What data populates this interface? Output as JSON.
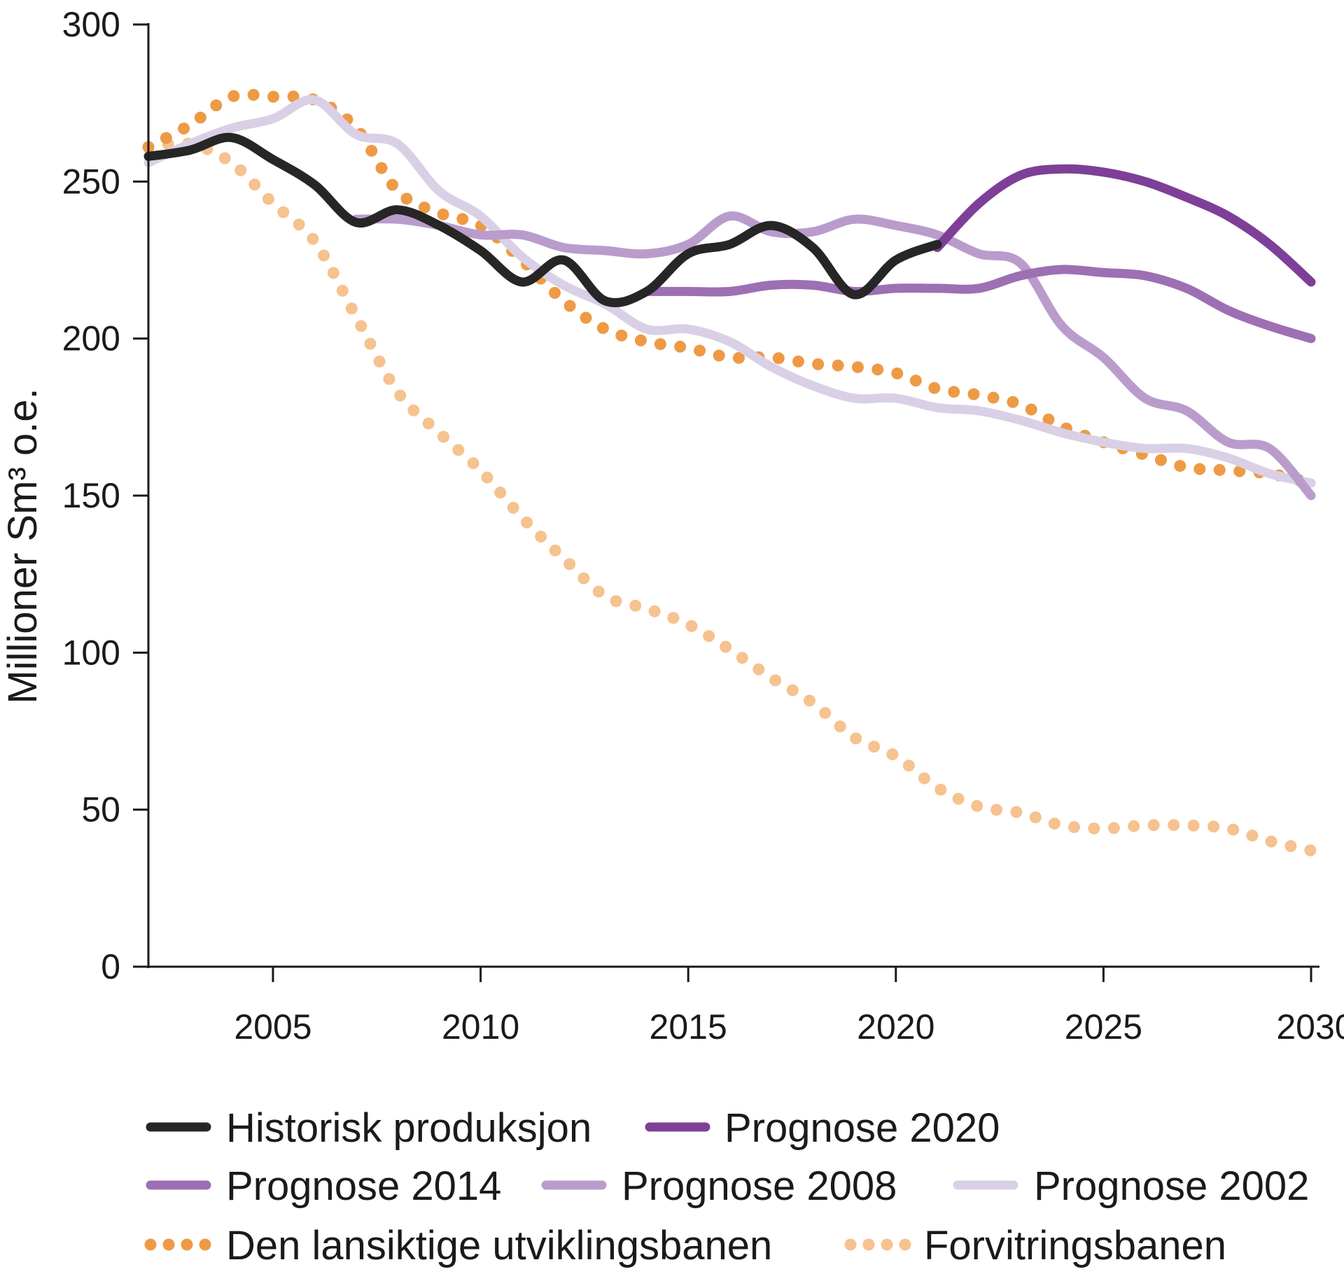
{
  "chart_data": {
    "type": "line",
    "title": "",
    "xlabel": "",
    "ylabel": "Millioner Sm³ o.e.",
    "xlim": [
      2002,
      2030
    ],
    "ylim": [
      0,
      300
    ],
    "xticks": [
      {
        "value": 2005,
        "label": "2005"
      },
      {
        "value": 2010,
        "label": "2010"
      },
      {
        "value": 2015,
        "label": "2015"
      },
      {
        "value": 2020,
        "label": "2020"
      },
      {
        "value": 2025,
        "label": "2025"
      },
      {
        "value": 2030,
        "label": "2030"
      }
    ],
    "yticks": [
      {
        "value": 0,
        "label": "0"
      },
      {
        "value": 50,
        "label": "50"
      },
      {
        "value": 100,
        "label": "100"
      },
      {
        "value": 150,
        "label": "150"
      },
      {
        "value": 200,
        "label": "200"
      },
      {
        "value": 250,
        "label": "250"
      },
      {
        "value": 300,
        "label": "300"
      }
    ],
    "grid": false,
    "legend_position": "bottom",
    "series": [
      {
        "name": "Historisk produksjon",
        "color": "#262626",
        "style": "solid",
        "x": [
          2002,
          2003,
          2004,
          2005,
          2006,
          2007,
          2008,
          2009,
          2010,
          2011,
          2012,
          2013,
          2014,
          2015,
          2016,
          2017,
          2018,
          2019,
          2020,
          2021
        ],
        "values": [
          258,
          260,
          264,
          257,
          249,
          237,
          241,
          236,
          228,
          218,
          225,
          212,
          215,
          227,
          230,
          236,
          229,
          214,
          225,
          230
        ]
      },
      {
        "name": "Prognose 2020",
        "color": "#7e3f98",
        "style": "solid",
        "x": [
          2021,
          2022,
          2023,
          2024,
          2025,
          2026,
          2027,
          2028,
          2029,
          2030
        ],
        "values": [
          229,
          243,
          252,
          254,
          253,
          250,
          245,
          239,
          230,
          218
        ]
      },
      {
        "name": "Prognose 2014",
        "color": "#9d6fb3",
        "style": "solid",
        "x": [
          2014,
          2015,
          2016,
          2017,
          2018,
          2019,
          2020,
          2021,
          2022,
          2023,
          2024,
          2025,
          2026,
          2027,
          2028,
          2029,
          2030
        ],
        "values": [
          215,
          215,
          215,
          217,
          217,
          215,
          216,
          216,
          216,
          220,
          222,
          221,
          220,
          216,
          209,
          204,
          200
        ]
      },
      {
        "name": "Prognose 2008",
        "color": "#b99ccc",
        "style": "solid",
        "x": [
          2007,
          2008,
          2009,
          2010,
          2011,
          2012,
          2013,
          2014,
          2015,
          2016,
          2017,
          2018,
          2019,
          2020,
          2021,
          2022,
          2023,
          2024,
          2025,
          2026,
          2027,
          2028,
          2029,
          2030
        ],
        "values": [
          238,
          238,
          236,
          233,
          233,
          229,
          228,
          227,
          230,
          239,
          234,
          234,
          238,
          236,
          233,
          227,
          224,
          204,
          194,
          181,
          177,
          167,
          165,
          150
        ]
      },
      {
        "name": "Prognose 2002",
        "color": "#d9d0e6",
        "style": "solid",
        "x": [
          2002,
          2003,
          2004,
          2005,
          2006,
          2007,
          2008,
          2009,
          2010,
          2011,
          2012,
          2013,
          2014,
          2015,
          2016,
          2017,
          2018,
          2019,
          2020,
          2021,
          2022,
          2023,
          2024,
          2025,
          2026,
          2027,
          2028,
          2029,
          2030
        ],
        "values": [
          256,
          262,
          267,
          270,
          276,
          265,
          262,
          247,
          239,
          226,
          217,
          211,
          203,
          203,
          199,
          191,
          185,
          181,
          181,
          178,
          177,
          174,
          170,
          167,
          165,
          165,
          162,
          157,
          154
        ]
      },
      {
        "name": "Den lansiktige utviklingsbanen",
        "color": "#ee9a45",
        "style": "dotted",
        "x": [
          2002,
          2003,
          2004,
          2005,
          2006,
          2007,
          2008,
          2009,
          2010,
          2011,
          2012,
          2013,
          2014,
          2015,
          2016,
          2017,
          2018,
          2019,
          2020,
          2021,
          2022,
          2023,
          2024,
          2025,
          2026,
          2027,
          2028,
          2029,
          2030
        ],
        "values": [
          261,
          268,
          277,
          277,
          276,
          267,
          247,
          240,
          236,
          225,
          212,
          203,
          199,
          197,
          194,
          194,
          192,
          191,
          189,
          184,
          182,
          179,
          172,
          167,
          163,
          159,
          158,
          157,
          154
        ]
      },
      {
        "name": "Forvitringsbanen",
        "color": "#f6c28f",
        "style": "dotted",
        "x": [
          2002,
          2003,
          2004,
          2005,
          2006,
          2007,
          2008,
          2009,
          2010,
          2011,
          2012,
          2013,
          2014,
          2015,
          2016,
          2017,
          2018,
          2019,
          2020,
          2021,
          2022,
          2023,
          2024,
          2025,
          2026,
          2027,
          2028,
          2029,
          2030
        ],
        "values": [
          261,
          262,
          256,
          243,
          231,
          207,
          183,
          170,
          158,
          143,
          130,
          118,
          114,
          109,
          101,
          92,
          84,
          73,
          67,
          57,
          51,
          49,
          45,
          44,
          45,
          45,
          44,
          40,
          37
        ]
      }
    ]
  }
}
